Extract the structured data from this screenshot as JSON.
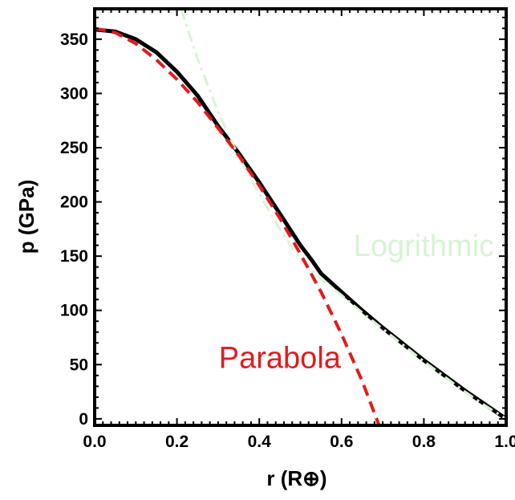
{
  "chart_data": {
    "type": "line",
    "title": "",
    "xlabel": "r (R⊕)",
    "ylabel": "p (GPa)",
    "xlim": [
      0,
      1.0
    ],
    "ylim": [
      -6,
      378
    ],
    "x_ticks": [
      0.0,
      0.2,
      0.4,
      0.6,
      0.8,
      1.0
    ],
    "x_tick_labels": [
      "0.0",
      "0.2",
      "0.4",
      "0.6",
      "0.8",
      "1.0"
    ],
    "y_ticks": [
      0,
      50,
      100,
      150,
      200,
      250,
      300,
      350
    ],
    "y_tick_labels": [
      "0",
      "50",
      "100",
      "150",
      "200",
      "250",
      "300",
      "350"
    ],
    "grid": false,
    "series": [
      {
        "name": "",
        "color": "#000000",
        "style": "solid",
        "x": [
          0.0,
          0.05,
          0.1,
          0.15,
          0.2,
          0.25,
          0.3,
          0.35,
          0.4,
          0.45,
          0.5,
          0.53,
          0.55,
          0.6,
          0.65,
          0.7,
          0.75,
          0.8,
          0.85,
          0.9,
          0.95,
          1.0
        ],
        "y": [
          359,
          357,
          350,
          338,
          320,
          298,
          270,
          245,
          218,
          189,
          160,
          145,
          134,
          117,
          100,
          84,
          69,
          54,
          40,
          26,
          13,
          0
        ]
      },
      {
        "name": "Parabola",
        "color": "#e31a1c",
        "style": "dashed",
        "x": [
          0.0,
          0.05,
          0.1,
          0.15,
          0.2,
          0.25,
          0.3,
          0.35,
          0.4,
          0.45,
          0.5,
          0.55,
          0.6,
          0.65,
          0.69
        ],
        "y": [
          360,
          356,
          346,
          331,
          313,
          292,
          268,
          243,
          215,
          185,
          152,
          117,
          78,
          35,
          -5
        ]
      },
      {
        "name": "Logrithmic",
        "color": "#d8f3d4",
        "style": "dashdot",
        "x": [
          0.21,
          0.25,
          0.3,
          0.35,
          0.4,
          0.45,
          0.5,
          0.55,
          0.6,
          0.65,
          0.7,
          0.75,
          0.8,
          0.85,
          0.9,
          0.95,
          1.0
        ],
        "y": [
          378,
          332,
          283,
          242,
          207,
          175,
          147,
          129,
          114,
          98,
          83,
          68,
          53,
          39,
          25,
          12,
          0
        ]
      }
    ],
    "annotations": [
      {
        "text": "Parabola",
        "x": 0.45,
        "y": 47,
        "color": "#e31a1c"
      },
      {
        "text": "Logrithmic",
        "x": 0.8,
        "y": 150,
        "color": "#d8f3d4"
      }
    ]
  }
}
